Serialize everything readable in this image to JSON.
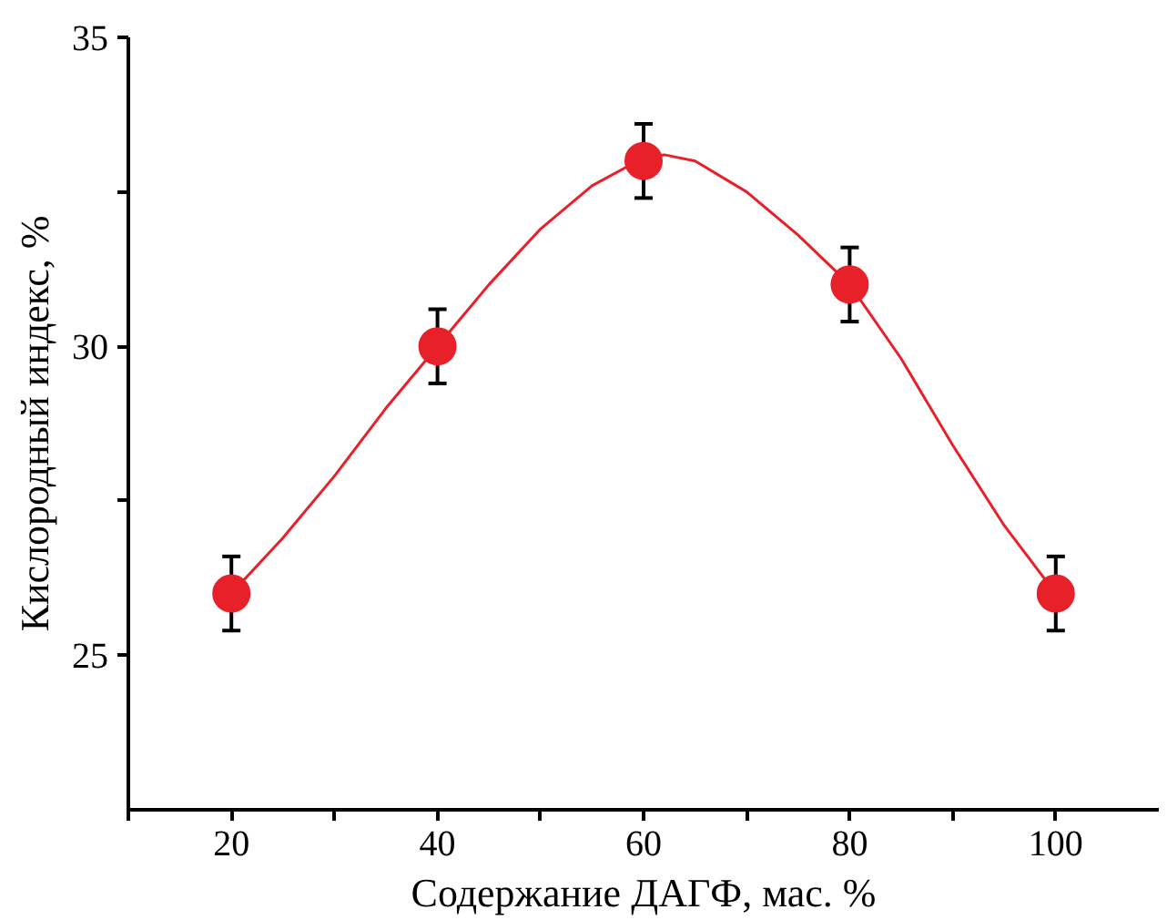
{
  "chart_data": {
    "type": "scatter",
    "xlabel": "Содержание ДАГФ, мас. %",
    "ylabel": "Кислородный индекс, %",
    "xlim": [
      10,
      110
    ],
    "ylim": [
      22.5,
      35
    ],
    "xticks": [
      {
        "value": 10,
        "label": null
      },
      20,
      {
        "value": 30,
        "label": null
      },
      40,
      {
        "value": 50,
        "label": null
      },
      60,
      {
        "value": 70,
        "label": null
      },
      80,
      {
        "value": 90,
        "label": null
      },
      100
    ],
    "yticks": [
      25,
      {
        "value": 27.5,
        "label": null
      },
      30,
      {
        "value": 32.5,
        "label": null
      },
      35
    ],
    "grid": false,
    "series": [
      {
        "marker": "circle",
        "color": "#e8202a",
        "x": [
          20,
          40,
          60,
          80,
          100
        ],
        "values": [
          26,
          30,
          33,
          31,
          26
        ],
        "errors": [
          0.6,
          0.6,
          0.6,
          0.6,
          0.6
        ]
      },
      {
        "type": "line",
        "marker": "none",
        "color": "#e8202a",
        "line_style": "solid",
        "x": [
          20,
          25,
          30,
          35,
          40,
          45,
          50,
          55,
          60,
          62,
          65,
          70,
          75,
          80,
          85,
          90,
          95,
          100
        ],
        "values": [
          26,
          26.9,
          27.9,
          29.0,
          30,
          31.0,
          31.9,
          32.6,
          33.05,
          33.1,
          33.0,
          32.5,
          31.8,
          31,
          29.8,
          28.4,
          27.1,
          26
        ]
      }
    ]
  }
}
